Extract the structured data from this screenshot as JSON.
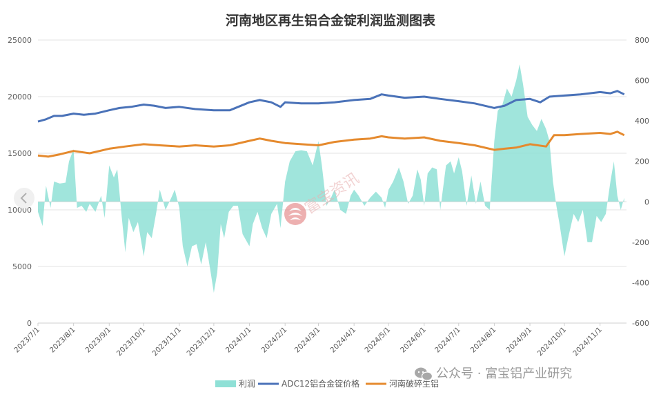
{
  "chart_data": {
    "type": "area+line",
    "title": "河南地区再生铝合金锭利润监测图表",
    "y_left": {
      "min": 0,
      "max": 25000,
      "ticks": [
        0,
        5000,
        10000,
        15000,
        20000,
        25000
      ]
    },
    "y_right": {
      "min": -600,
      "max": 800,
      "ticks": [
        -600,
        -400,
        -200,
        0,
        200,
        400,
        600,
        800
      ]
    },
    "x_ticks": [
      "2023/7/1",
      "2023/8/1",
      "2023/9/1",
      "2023/10/1",
      "2023/11/1",
      "2023/12/1",
      "2024/1/1",
      "2024/2/1",
      "2024/3/1",
      "2024/4/1",
      "2024/5/1",
      "2024/6/1",
      "2024/7/1",
      "2024/8/1",
      "2024/9/1",
      "2024/10/1",
      "2024/11/1"
    ],
    "grid": true,
    "legend_position": "bottom",
    "series": [
      {
        "name": "利润",
        "kind": "area",
        "axis": "right",
        "color": "#8fe0d6",
        "points": [
          [
            "2023/7/1",
            -50
          ],
          [
            "2023/7/5",
            -120
          ],
          [
            "2023/7/8",
            80
          ],
          [
            "2023/7/12",
            -30
          ],
          [
            "2023/7/15",
            100
          ],
          [
            "2023/7/20",
            90
          ],
          [
            "2023/7/25",
            95
          ],
          [
            "2023/7/28",
            200
          ],
          [
            "2023/8/1",
            260
          ],
          [
            "2023/8/4",
            -30
          ],
          [
            "2023/8/8",
            -20
          ],
          [
            "2023/8/12",
            -50
          ],
          [
            "2023/8/15",
            -10
          ],
          [
            "2023/8/20",
            -50
          ],
          [
            "2023/8/25",
            30
          ],
          [
            "2023/8/28",
            -80
          ],
          [
            "2023/9/1",
            180
          ],
          [
            "2023/9/5",
            120
          ],
          [
            "2023/9/8",
            160
          ],
          [
            "2023/9/12",
            -80
          ],
          [
            "2023/9/15",
            -250
          ],
          [
            "2023/9/18",
            -80
          ],
          [
            "2023/9/22",
            -150
          ],
          [
            "2023/9/26",
            -100
          ],
          [
            "2023/10/1",
            -270
          ],
          [
            "2023/10/4",
            -150
          ],
          [
            "2023/10/8",
            -180
          ],
          [
            "2023/10/12",
            -50
          ],
          [
            "2023/10/15",
            60
          ],
          [
            "2023/10/20",
            -40
          ],
          [
            "2023/10/25",
            20
          ],
          [
            "2023/10/28",
            60
          ],
          [
            "2023/11/1",
            -30
          ],
          [
            "2023/11/4",
            -220
          ],
          [
            "2023/11/8",
            -320
          ],
          [
            "2023/11/12",
            -220
          ],
          [
            "2023/11/16",
            -210
          ],
          [
            "2023/11/20",
            -310
          ],
          [
            "2023/11/24",
            -200
          ],
          [
            "2023/11/28",
            -340
          ],
          [
            "2023/12/1",
            -450
          ],
          [
            "2023/12/4",
            -350
          ],
          [
            "2023/12/7",
            -110
          ],
          [
            "2023/12/10",
            -180
          ],
          [
            "2023/12/14",
            -50
          ],
          [
            "2023/12/18",
            -20
          ],
          [
            "2023/12/22",
            -20
          ],
          [
            "2023/12/26",
            -160
          ],
          [
            "2024/1/1",
            -220
          ],
          [
            "2024/1/4",
            -110
          ],
          [
            "2024/1/8",
            -50
          ],
          [
            "2024/1/12",
            -130
          ],
          [
            "2024/1/16",
            -180
          ],
          [
            "2024/1/20",
            -60
          ],
          [
            "2024/1/25",
            -10
          ],
          [
            "2024/1/28",
            -130
          ],
          [
            "2024/2/1",
            100
          ],
          [
            "2024/2/5",
            200
          ],
          [
            "2024/2/10",
            250
          ],
          [
            "2024/2/15",
            255
          ],
          [
            "2024/2/20",
            250
          ],
          [
            "2024/2/25",
            180
          ],
          [
            "2024/3/1",
            300
          ],
          [
            "2024/3/4",
            180
          ],
          [
            "2024/3/8",
            -20
          ],
          [
            "2024/3/12",
            20
          ],
          [
            "2024/3/15",
            60
          ],
          [
            "2024/3/20",
            -40
          ],
          [
            "2024/3/25",
            -60
          ],
          [
            "2024/3/29",
            30
          ],
          [
            "2024/4/1",
            60
          ],
          [
            "2024/4/5",
            30
          ],
          [
            "2024/4/10",
            -20
          ],
          [
            "2024/4/15",
            20
          ],
          [
            "2024/4/20",
            50
          ],
          [
            "2024/4/25",
            20
          ],
          [
            "2024/4/28",
            -30
          ],
          [
            "2024/5/1",
            60
          ],
          [
            "2024/5/5",
            100
          ],
          [
            "2024/5/10",
            170
          ],
          [
            "2024/5/14",
            100
          ],
          [
            "2024/5/18",
            -10
          ],
          [
            "2024/5/22",
            30
          ],
          [
            "2024/5/26",
            160
          ],
          [
            "2024/5/29",
            110
          ],
          [
            "2024/6/1",
            -20
          ],
          [
            "2024/6/4",
            140
          ],
          [
            "2024/6/8",
            170
          ],
          [
            "2024/6/12",
            160
          ],
          [
            "2024/6/15",
            -40
          ],
          [
            "2024/6/20",
            180
          ],
          [
            "2024/6/24",
            200
          ],
          [
            "2024/6/27",
            140
          ],
          [
            "2024/7/1",
            220
          ],
          [
            "2024/7/4",
            150
          ],
          [
            "2024/7/8",
            -20
          ],
          [
            "2024/7/12",
            130
          ],
          [
            "2024/7/16",
            -10
          ],
          [
            "2024/7/20",
            100
          ],
          [
            "2024/7/24",
            -20
          ],
          [
            "2024/7/28",
            -40
          ],
          [
            "2024/8/1",
            300
          ],
          [
            "2024/8/4",
            450
          ],
          [
            "2024/8/8",
            480
          ],
          [
            "2024/8/12",
            560
          ],
          [
            "2024/8/16",
            520
          ],
          [
            "2024/8/20",
            600
          ],
          [
            "2024/8/23",
            680
          ],
          [
            "2024/8/26",
            580
          ],
          [
            "2024/8/30",
            420
          ],
          [
            "2024/9/3",
            380
          ],
          [
            "2024/9/7",
            350
          ],
          [
            "2024/9/11",
            410
          ],
          [
            "2024/9/15",
            360
          ],
          [
            "2024/9/18",
            300
          ],
          [
            "2024/9/21",
            100
          ],
          [
            "2024/9/24",
            -20
          ],
          [
            "2024/9/27",
            -120
          ],
          [
            "2024/10/1",
            -270
          ],
          [
            "2024/10/5",
            -160
          ],
          [
            "2024/10/9",
            -60
          ],
          [
            "2024/10/13",
            -100
          ],
          [
            "2024/10/17",
            -40
          ],
          [
            "2024/10/21",
            -200
          ],
          [
            "2024/10/25",
            -200
          ],
          [
            "2024/10/29",
            -70
          ],
          [
            "2024/11/2",
            -100
          ],
          [
            "2024/11/6",
            -60
          ],
          [
            "2024/11/10",
            100
          ],
          [
            "2024/11/13",
            200
          ],
          [
            "2024/11/16",
            30
          ],
          [
            "2024/11/19",
            -40
          ],
          [
            "2024/11/22",
            20
          ]
        ]
      },
      {
        "name": "ADC12铝合金锭价格",
        "kind": "line",
        "axis": "left",
        "color": "#4a72b8",
        "points": [
          [
            "2023/7/1",
            17800
          ],
          [
            "2023/7/8",
            18000
          ],
          [
            "2023/7/15",
            18300
          ],
          [
            "2023/7/22",
            18300
          ],
          [
            "2023/8/1",
            18500
          ],
          [
            "2023/8/10",
            18400
          ],
          [
            "2023/8/20",
            18500
          ],
          [
            "2023/9/1",
            18800
          ],
          [
            "2023/9/10",
            19000
          ],
          [
            "2023/9/20",
            19100
          ],
          [
            "2023/10/1",
            19300
          ],
          [
            "2023/10/10",
            19200
          ],
          [
            "2023/10/20",
            19000
          ],
          [
            "2023/11/1",
            19100
          ],
          [
            "2023/11/15",
            18900
          ],
          [
            "2023/12/1",
            18800
          ],
          [
            "2023/12/15",
            18800
          ],
          [
            "2024/1/1",
            19500
          ],
          [
            "2024/1/10",
            19700
          ],
          [
            "2024/1/20",
            19500
          ],
          [
            "2024/1/28",
            19100
          ],
          [
            "2024/2/1",
            19500
          ],
          [
            "2024/2/15",
            19400
          ],
          [
            "2024/3/1",
            19400
          ],
          [
            "2024/3/15",
            19500
          ],
          [
            "2024/4/1",
            19700
          ],
          [
            "2024/4/15",
            19800
          ],
          [
            "2024/4/25",
            20200
          ],
          [
            "2024/5/1",
            20100
          ],
          [
            "2024/5/15",
            19900
          ],
          [
            "2024/6/1",
            20000
          ],
          [
            "2024/6/15",
            19800
          ],
          [
            "2024/7/1",
            19600
          ],
          [
            "2024/7/15",
            19400
          ],
          [
            "2024/8/1",
            19000
          ],
          [
            "2024/8/10",
            19200
          ],
          [
            "2024/8/20",
            19700
          ],
          [
            "2024/9/1",
            19800
          ],
          [
            "2024/9/10",
            19500
          ],
          [
            "2024/9/18",
            20000
          ],
          [
            "2024/10/1",
            20100
          ],
          [
            "2024/10/15",
            20200
          ],
          [
            "2024/11/1",
            20400
          ],
          [
            "2024/11/10",
            20300
          ],
          [
            "2024/11/16",
            20500
          ],
          [
            "2024/11/22",
            20200
          ]
        ]
      },
      {
        "name": "河南破碎生铝",
        "kind": "line",
        "axis": "left",
        "color": "#e58a2e",
        "points": [
          [
            "2023/7/1",
            14800
          ],
          [
            "2023/7/10",
            14700
          ],
          [
            "2023/7/20",
            14900
          ],
          [
            "2023/8/1",
            15200
          ],
          [
            "2023/8/15",
            15000
          ],
          [
            "2023/9/1",
            15400
          ],
          [
            "2023/9/15",
            15600
          ],
          [
            "2023/10/1",
            15800
          ],
          [
            "2023/10/15",
            15700
          ],
          [
            "2023/11/1",
            15600
          ],
          [
            "2023/11/15",
            15700
          ],
          [
            "2023/12/1",
            15600
          ],
          [
            "2023/12/15",
            15700
          ],
          [
            "2024/1/1",
            16100
          ],
          [
            "2024/1/10",
            16300
          ],
          [
            "2024/1/20",
            16100
          ],
          [
            "2024/2/1",
            15900
          ],
          [
            "2024/2/15",
            15800
          ],
          [
            "2024/3/1",
            15700
          ],
          [
            "2024/3/15",
            16000
          ],
          [
            "2024/4/1",
            16200
          ],
          [
            "2024/4/15",
            16300
          ],
          [
            "2024/4/25",
            16500
          ],
          [
            "2024/5/1",
            16400
          ],
          [
            "2024/5/15",
            16300
          ],
          [
            "2024/6/1",
            16400
          ],
          [
            "2024/6/15",
            16100
          ],
          [
            "2024/7/1",
            15900
          ],
          [
            "2024/7/15",
            15700
          ],
          [
            "2024/8/1",
            15300
          ],
          [
            "2024/8/10",
            15400
          ],
          [
            "2024/8/20",
            15500
          ],
          [
            "2024/9/1",
            15800
          ],
          [
            "2024/9/15",
            15600
          ],
          [
            "2024/9/22",
            16600
          ],
          [
            "2024/10/1",
            16600
          ],
          [
            "2024/10/15",
            16700
          ],
          [
            "2024/11/1",
            16800
          ],
          [
            "2024/11/10",
            16700
          ],
          [
            "2024/11/16",
            16900
          ],
          [
            "2024/11/22",
            16600
          ]
        ]
      }
    ]
  },
  "watermark": {
    "text": "富宝资讯",
    "logo": "fubao-logo-icon"
  },
  "footer": {
    "icon": "wechat-icon",
    "text": "公众号 · 富宝铝产业研究"
  },
  "nav": {
    "icon": "chevron-left-icon"
  }
}
